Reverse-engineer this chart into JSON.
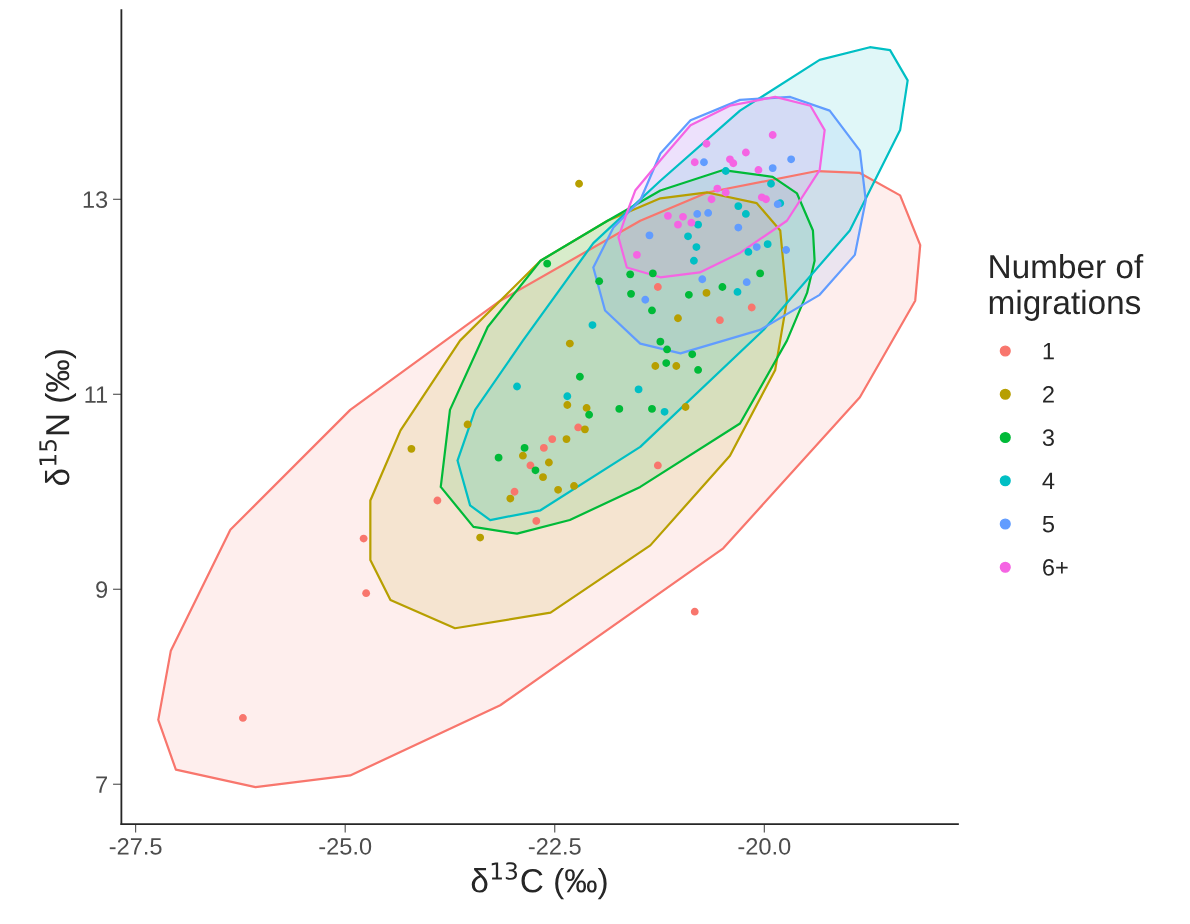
{
  "chart_data": {
    "type": "scatter",
    "xlabel": "δ$^{13}$C (‰)",
    "ylabel": "δ$^{15}$N (‰)",
    "legend_title": "Number of\nmigrations",
    "xlim": [
      -27.67,
      -17.69
    ],
    "ylim": [
      6.59,
      14.94
    ],
    "xticks": [
      -27.5,
      {
        "value": -25,
        "label": "-25.0"
      },
      -22.5,
      {
        "value": -20,
        "label": "-20.0"
      }
    ],
    "yticks": [
      7,
      9,
      11,
      13
    ],
    "grid": false,
    "legend": "right",
    "series": [
      {
        "type": "area",
        "color": "#F8766D",
        "x": [
          -27.23,
          -27.02,
          -26.07,
          -24.94,
          -23.15,
          -20.49,
          -18.86,
          -18.2,
          -18.14,
          -18.38,
          -18.86,
          -19.37,
          -20.68,
          -21.48,
          -23.15,
          -24.94,
          -26.37,
          -27.08,
          -27.23
        ],
        "values": [
          7.66,
          7.15,
          6.97,
          7.09,
          7.81,
          9.42,
          10.97,
          11.96,
          12.53,
          13.04,
          13.27,
          13.29,
          13.07,
          12.78,
          11.96,
          10.84,
          9.61,
          8.37,
          7.66
        ]
      },
      {
        "type": "area",
        "color": "#B79F00",
        "x": [
          -24.7,
          -24.46,
          -23.69,
          -22.55,
          -21.36,
          -20.41,
          -19.87,
          -19.73,
          -19.81,
          -20.09,
          -20.68,
          -21.24,
          -21.87,
          -22.67,
          -23.63,
          -24.34,
          -24.7,
          -24.7
        ],
        "values": [
          9.3,
          8.89,
          8.6,
          8.76,
          9.45,
          10.37,
          11.25,
          11.96,
          12.68,
          12.96,
          13.07,
          13.01,
          12.78,
          12.37,
          11.55,
          10.63,
          9.91,
          9.3
        ]
      },
      {
        "type": "area",
        "color": "#00BA38",
        "x": [
          -23.86,
          -23.47,
          -22.95,
          -22.32,
          -21.48,
          -20.29,
          -19.73,
          -19.49,
          -19.4,
          -19.42,
          -19.61,
          -19.9,
          -20.49,
          -21.24,
          -21.87,
          -22.67,
          -23.3,
          -23.75,
          -23.86
        ],
        "values": [
          10.05,
          9.64,
          9.57,
          9.71,
          10.05,
          10.7,
          11.55,
          12.04,
          12.37,
          12.68,
          13.06,
          13.23,
          13.3,
          13.09,
          12.78,
          12.37,
          11.69,
          10.84,
          10.05
        ]
      },
      {
        "type": "area",
        "color": "#00BFC4",
        "x": [
          -23.66,
          -23.51,
          -23.27,
          -22.67,
          -21.48,
          -20.01,
          -18.98,
          -18.38,
          -18.29,
          -18.5,
          -18.74,
          -19.34,
          -20.29,
          -21.24,
          -22.04,
          -22.88,
          -23.45,
          -23.66
        ],
        "values": [
          10.32,
          9.86,
          9.71,
          9.81,
          10.46,
          11.66,
          12.68,
          13.71,
          14.22,
          14.53,
          14.56,
          14.43,
          13.91,
          13.19,
          12.55,
          11.55,
          10.84,
          10.32
        ]
      },
      {
        "type": "area",
        "color": "#619CFF",
        "x": [
          -22.04,
          -21.9,
          -21.48,
          -21.0,
          -20.05,
          -19.34,
          -18.92,
          -18.79,
          -18.86,
          -19.22,
          -19.69,
          -20.29,
          -20.88,
          -21.24,
          -21.48,
          -21.8,
          -22.04
        ],
        "values": [
          12.3,
          11.86,
          11.52,
          11.42,
          11.66,
          12.02,
          12.43,
          12.99,
          13.5,
          13.91,
          14.05,
          14.02,
          13.81,
          13.47,
          12.99,
          12.71,
          12.3
        ]
      },
      {
        "type": "area",
        "color": "#F564E3",
        "x": [
          -21.64,
          -21.74,
          -21.64,
          -21.24,
          -20.77,
          -20.29,
          -19.73,
          -19.34,
          -19.28,
          -19.45,
          -19.87,
          -20.41,
          -20.88,
          -21.24,
          -21.54,
          -21.64
        ],
        "values": [
          12.86,
          12.61,
          12.3,
          12.2,
          12.25,
          12.45,
          12.78,
          13.3,
          13.71,
          13.96,
          14.05,
          13.96,
          13.76,
          13.4,
          13.09,
          12.86
        ]
      },
      {
        "marker": "circle",
        "name": "1",
        "color": "#F8766D",
        "x": [
          -26.22,
          -24.78,
          -24.75,
          -23.9,
          -22.72,
          -20.83,
          -21.27,
          -22.22,
          -22.53,
          -22.63,
          -22.79,
          -22.98,
          -21.27,
          -20.15,
          -20.53
        ],
        "values": [
          7.68,
          9.52,
          8.96,
          9.91,
          9.7,
          8.77,
          10.27,
          10.66,
          10.54,
          10.45,
          10.27,
          10.0,
          12.1,
          11.89,
          11.76
        ]
      },
      {
        "marker": "circle",
        "name": "2",
        "color": "#B79F00",
        "x": [
          -22.21,
          -22.32,
          -21.3,
          -21.05,
          -20.94,
          -23.54,
          -24.21,
          -22.35,
          -22.12,
          -22.14,
          -22.36,
          -22.88,
          -22.57,
          -22.64,
          -22.46,
          -22.27,
          -23.03,
          -23.39,
          -20.69,
          -21.03
        ],
        "values": [
          13.16,
          11.52,
          11.29,
          11.29,
          10.87,
          10.69,
          10.44,
          10.89,
          10.86,
          10.64,
          10.54,
          10.37,
          10.3,
          10.15,
          10.02,
          10.06,
          9.93,
          9.53,
          12.04,
          11.78
        ]
      },
      {
        "marker": "circle",
        "name": "3",
        "color": "#00BA38",
        "x": [
          -22.59,
          -21.97,
          -21.6,
          -21.59,
          -21.34,
          -21.33,
          -20.9,
          -20.5,
          -20.05,
          -21.24,
          -22.2,
          -21.73,
          -21.34,
          -22.09,
          -22.86,
          -23.17,
          -22.73,
          -21.16,
          -20.86,
          -21.17,
          -20.79
        ],
        "values": [
          12.34,
          12.16,
          12.23,
          12.03,
          11.86,
          12.24,
          12.02,
          12.1,
          12.24,
          11.54,
          11.18,
          10.85,
          10.85,
          10.79,
          10.45,
          10.35,
          10.22,
          11.46,
          11.41,
          11.32,
          11.25
        ]
      },
      {
        "marker": "circle",
        "name": "4",
        "color": "#00BFC4",
        "x": [
          -22.05,
          -20.46,
          -19.92,
          -20.31,
          -20.22,
          -20.79,
          -20.91,
          -20.81,
          -20.84,
          -20.19,
          -19.96,
          -20.32,
          -19.81,
          -22.95,
          -22.35,
          -21.5,
          -21.19
        ],
        "values": [
          11.71,
          13.29,
          13.16,
          12.93,
          12.85,
          12.74,
          12.62,
          12.51,
          12.37,
          12.46,
          12.54,
          12.05,
          12.96,
          11.08,
          10.98,
          11.05,
          10.82
        ]
      },
      {
        "marker": "circle",
        "name": "5",
        "color": "#619CFF",
        "x": [
          -21.37,
          -21.42,
          -20.72,
          -19.9,
          -19.68,
          -20.67,
          -20.8,
          -20.31,
          -19.84,
          -20.09,
          -19.74,
          -20.74,
          -20.21
        ],
        "values": [
          12.63,
          11.97,
          13.38,
          13.32,
          13.41,
          12.86,
          12.85,
          12.71,
          12.95,
          12.51,
          12.48,
          12.18,
          12.15
        ]
      },
      {
        "marker": "circle",
        "name": "6+",
        "color": "#F564E3",
        "x": [
          -21.52,
          -19.9,
          -20.69,
          -20.22,
          -20.83,
          -20.41,
          -20.37,
          -20.07,
          -20.56,
          -20.46,
          -20.63,
          -20.03,
          -19.98,
          -21.15,
          -20.97,
          -21.03,
          -20.87
        ],
        "values": [
          12.43,
          13.66,
          13.57,
          13.48,
          13.38,
          13.41,
          13.37,
          13.3,
          13.11,
          13.07,
          13.0,
          13.02,
          13.0,
          12.83,
          12.82,
          12.74,
          12.76
        ]
      }
    ]
  }
}
